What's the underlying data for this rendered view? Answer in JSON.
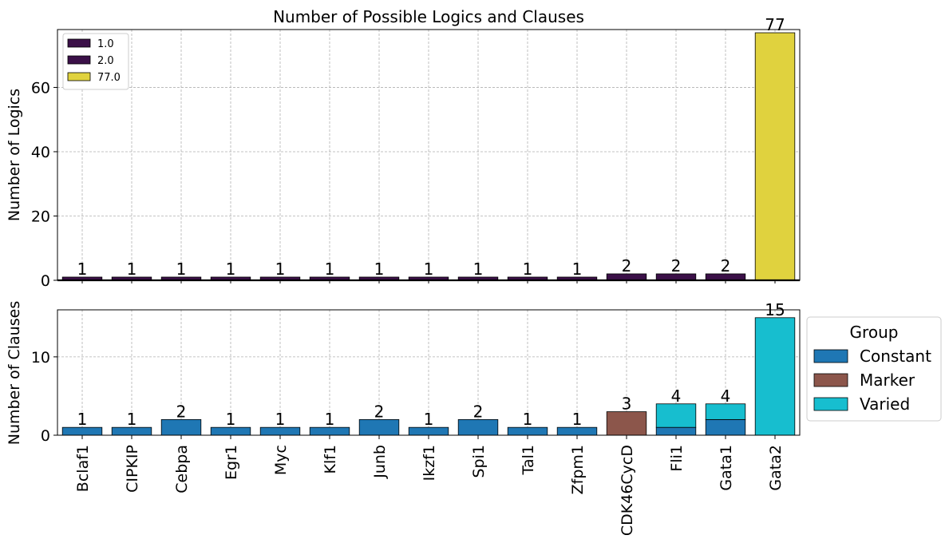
{
  "chart_data": [
    {
      "type": "bar",
      "title": "Number of Possible Logics and Clauses",
      "ylabel": "Number of Logics",
      "xlabel": "",
      "ylim": [
        0,
        78
      ],
      "yticks": [
        0,
        20,
        40,
        60
      ],
      "grid": true,
      "categories": [
        "Bclaf1",
        "CIPKIP",
        "Cebpa",
        "Egr1",
        "Myc",
        "Klf1",
        "Junb",
        "Ikzf1",
        "Spi1",
        "Tal1",
        "Zfpm1",
        "CDK46CycD",
        "Fli1",
        "Gata1",
        "Gata2"
      ],
      "values": [
        1,
        1,
        1,
        1,
        1,
        1,
        1,
        1,
        1,
        1,
        1,
        2,
        2,
        2,
        77
      ],
      "data_labels": [
        "1",
        "1",
        "1",
        "1",
        "1",
        "1",
        "1",
        "1",
        "1",
        "1",
        "1",
        "2",
        "2",
        "2",
        "77"
      ],
      "legend": {
        "placement": "top-left",
        "entries": [
          {
            "label": "1.0",
            "color": "#3b1048"
          },
          {
            "label": "2.0",
            "color": "#3b1048"
          },
          {
            "label": "77.0",
            "color": "#e0d23e"
          }
        ]
      },
      "colors_by_value": {
        "1": "#3b1048",
        "2": "#3b1048",
        "77": "#e0d23e"
      }
    },
    {
      "type": "bar",
      "stacked": true,
      "ylabel": "Number of Clauses",
      "xlabel": "",
      "ylim": [
        0,
        16
      ],
      "yticks": [
        0,
        10
      ],
      "grid": true,
      "categories": [
        "Bclaf1",
        "CIPKIP",
        "Cebpa",
        "Egr1",
        "Myc",
        "Klf1",
        "Junb",
        "Ikzf1",
        "Spi1",
        "Tal1",
        "Zfpm1",
        "CDK46CycD",
        "Fli1",
        "Gata1",
        "Gata2"
      ],
      "series": [
        {
          "name": "Constant",
          "color": "#1f77b4",
          "values": [
            1,
            1,
            2,
            1,
            1,
            1,
            2,
            1,
            2,
            1,
            1,
            0,
            1,
            2,
            0
          ]
        },
        {
          "name": "Marker",
          "color": "#8c564b",
          "values": [
            0,
            0,
            0,
            0,
            0,
            0,
            0,
            0,
            0,
            0,
            0,
            3,
            0,
            0,
            0
          ]
        },
        {
          "name": "Varied",
          "color": "#17becf",
          "values": [
            0,
            0,
            0,
            0,
            0,
            0,
            0,
            0,
            0,
            0,
            0,
            0,
            3,
            2,
            15
          ]
        }
      ],
      "totals": [
        "1",
        "1",
        "2",
        "1",
        "1",
        "1",
        "2",
        "1",
        "2",
        "1",
        "1",
        "3",
        "4",
        "4",
        "15"
      ],
      "legend": {
        "title": "Group",
        "placement": "right",
        "entries": [
          "Constant",
          "Marker",
          "Varied"
        ]
      }
    }
  ]
}
